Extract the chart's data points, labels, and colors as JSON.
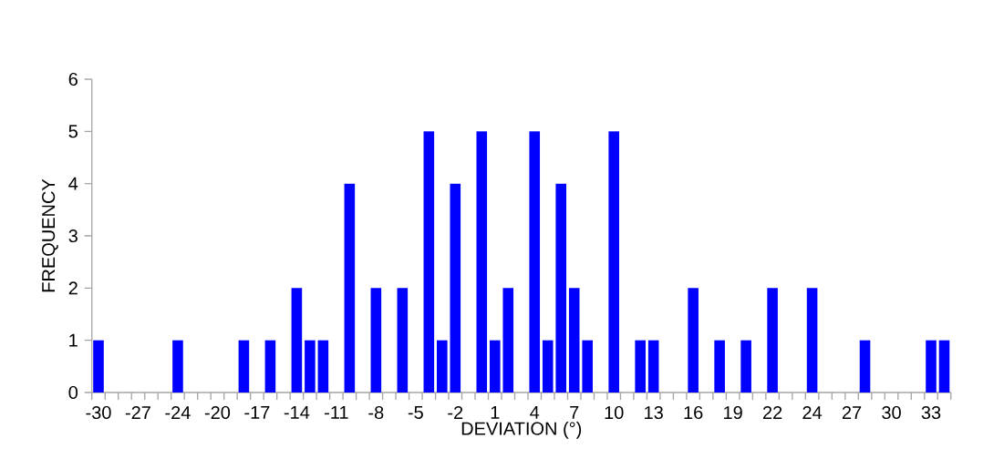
{
  "chart_data": {
    "type": "bar",
    "xlabel": "DEVIATION (°)",
    "ylabel": "FREQUENCY",
    "color": "#0000ff",
    "categories": [
      "-30",
      null,
      null,
      "-27",
      null,
      null,
      "-24",
      null,
      null,
      "-20",
      null,
      null,
      "-17",
      null,
      null,
      "-14",
      null,
      null,
      "-11",
      null,
      null,
      "-8",
      null,
      null,
      "-5",
      null,
      null,
      "-2",
      null,
      null,
      "1",
      null,
      null,
      "4",
      null,
      null,
      "7",
      null,
      null,
      "10",
      null,
      null,
      "13",
      null,
      null,
      "16",
      null,
      null,
      "19",
      null,
      null,
      "22",
      null,
      null,
      "24",
      null,
      null,
      "27",
      null,
      null,
      "30",
      null,
      null,
      "33",
      null
    ],
    "values": [
      1,
      0,
      0,
      0,
      0,
      0,
      1,
      0,
      0,
      0,
      0,
      1,
      0,
      1,
      0,
      2,
      1,
      1,
      0,
      4,
      0,
      2,
      0,
      2,
      0,
      5,
      1,
      4,
      0,
      5,
      1,
      2,
      0,
      5,
      1,
      4,
      2,
      1,
      0,
      5,
      0,
      1,
      1,
      0,
      0,
      2,
      0,
      1,
      0,
      1,
      0,
      2,
      0,
      0,
      2,
      0,
      0,
      0,
      1,
      0,
      0,
      0,
      0,
      1,
      1
    ],
    "ylim": [
      0,
      6
    ],
    "yticks": [
      0,
      1,
      2,
      3,
      4,
      5,
      6
    ],
    "grid": false
  }
}
